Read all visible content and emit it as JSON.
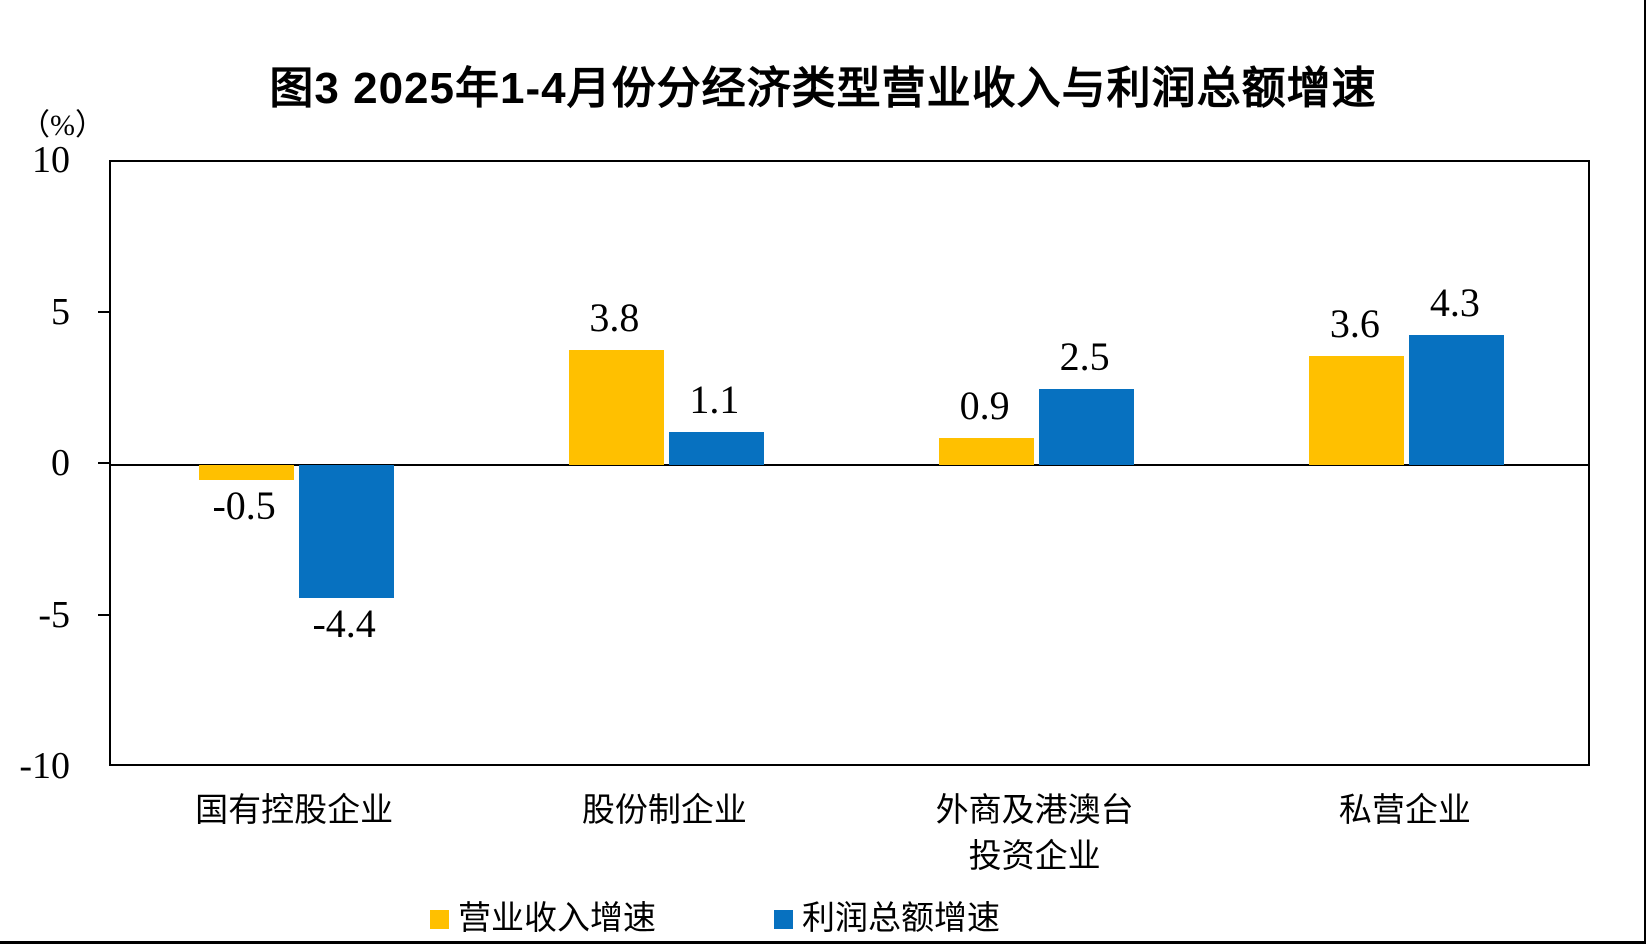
{
  "figure": {
    "title": "图3  2025年1-4月份分经济类型营业收入与利润总额增速",
    "unit_label": "（%）"
  },
  "chart_data": {
    "type": "bar",
    "title": "图3 2025年1-4月份分经济类型营业收入与利润总额增速",
    "unit": "%",
    "categories": [
      "国有控股企业",
      "股份制企业",
      "外商及港澳台\n投资企业",
      "私营企业"
    ],
    "series": [
      {
        "name": "营业收入增速",
        "color": "#FFC000",
        "values": [
          -0.5,
          3.8,
          0.9,
          3.6
        ]
      },
      {
        "name": "利润总额增速",
        "color": "#0771C0",
        "values": [
          -4.4,
          1.1,
          2.5,
          4.3
        ]
      }
    ],
    "ylabel": "（%）",
    "ylim": [
      -10,
      10
    ],
    "yticks": [
      10,
      5,
      0,
      -5,
      -10
    ],
    "grid": "zero-line-only",
    "legend_position": "bottom",
    "data_labels": true
  }
}
